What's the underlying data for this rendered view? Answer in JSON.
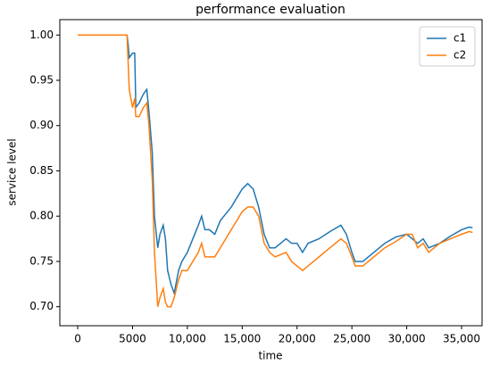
{
  "chart_data": {
    "type": "line",
    "title": "performance evaluation",
    "xlabel": "time",
    "ylabel": "service level",
    "x": [
      0,
      4500,
      4600,
      4700,
      5000,
      5200,
      5300,
      5600,
      6000,
      6300,
      6500,
      6800,
      7000,
      7300,
      7500,
      7800,
      8000,
      8200,
      8500,
      8800,
      9200,
      9500,
      10000,
      10500,
      11000,
      11300,
      11600,
      12000,
      12500,
      13000,
      14000,
      15000,
      15500,
      16000,
      16500,
      17000,
      17500,
      18000,
      19000,
      19500,
      20000,
      20500,
      21000,
      22000,
      23000,
      24000,
      24500,
      25000,
      25300,
      26000,
      27000,
      28000,
      29000,
      30000,
      30500,
      31000,
      31500,
      32000,
      33000,
      34000,
      35000,
      35700,
      36000
    ],
    "series": [
      {
        "name": "c1",
        "color": "#1f77b4",
        "values": [
          1,
          1,
          0.99,
          0.975,
          0.98,
          0.98,
          0.92,
          0.925,
          0.935,
          0.94,
          0.915,
          0.87,
          0.8,
          0.765,
          0.78,
          0.79,
          0.775,
          0.74,
          0.725,
          0.715,
          0.74,
          0.75,
          0.76,
          0.775,
          0.79,
          0.8,
          0.785,
          0.785,
          0.78,
          0.795,
          0.81,
          0.83,
          0.836,
          0.83,
          0.81,
          0.78,
          0.765,
          0.765,
          0.775,
          0.77,
          0.77,
          0.76,
          0.77,
          0.775,
          0.783,
          0.79,
          0.78,
          0.76,
          0.75,
          0.75,
          0.76,
          0.77,
          0.777,
          0.78,
          0.775,
          0.77,
          0.775,
          0.765,
          0.77,
          0.778,
          0.785,
          0.788,
          0.787
        ]
      },
      {
        "name": "c2",
        "color": "#ff7f0e",
        "values": [
          1,
          1,
          0.97,
          0.94,
          0.92,
          0.93,
          0.91,
          0.91,
          0.92,
          0.925,
          0.9,
          0.84,
          0.76,
          0.7,
          0.71,
          0.72,
          0.705,
          0.7,
          0.7,
          0.71,
          0.73,
          0.74,
          0.74,
          0.75,
          0.76,
          0.77,
          0.755,
          0.755,
          0.755,
          0.765,
          0.785,
          0.805,
          0.81,
          0.81,
          0.8,
          0.77,
          0.76,
          0.755,
          0.76,
          0.75,
          0.745,
          0.74,
          0.745,
          0.755,
          0.765,
          0.775,
          0.77,
          0.755,
          0.745,
          0.745,
          0.755,
          0.765,
          0.772,
          0.78,
          0.78,
          0.765,
          0.77,
          0.76,
          0.77,
          0.775,
          0.78,
          0.783,
          0.782
        ]
      }
    ],
    "xlim": [
      -1630,
      36870
    ],
    "ylim": [
      0.679,
      1.017
    ],
    "xticks": [
      0,
      5000,
      {
        "value": 10000,
        "label": "10,000"
      },
      {
        "value": 15000,
        "label": "15,000"
      },
      {
        "value": 20000,
        "label": "20,000"
      },
      {
        "value": 25000,
        "label": "25,000"
      },
      {
        "value": 30000,
        "label": "30,000"
      },
      {
        "value": 35000,
        "label": "35,000"
      }
    ],
    "yticks": [
      {
        "value": 0.7,
        "label": "0.70"
      },
      {
        "value": 0.75,
        "label": "0.75"
      },
      {
        "value": 0.8,
        "label": "0.80"
      },
      {
        "value": 0.85,
        "label": "0.85"
      },
      {
        "value": 0.9,
        "label": "0.90"
      },
      {
        "value": 0.95,
        "label": "0.95"
      },
      {
        "value": 1,
        "label": "1.00"
      }
    ],
    "legend": "upper right",
    "grid": false
  }
}
